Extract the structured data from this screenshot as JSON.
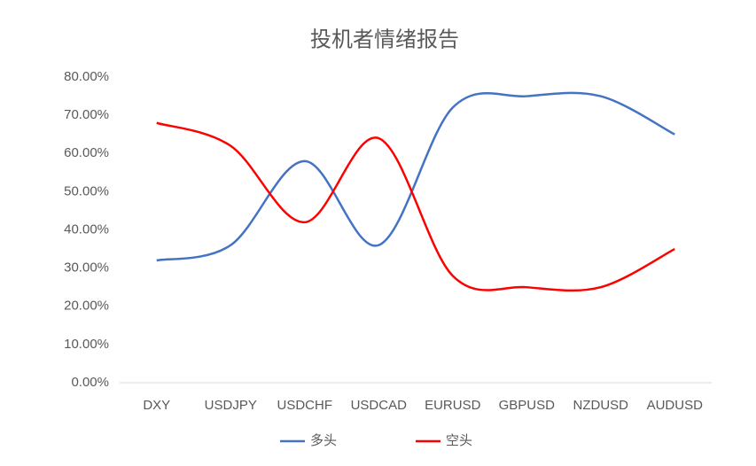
{
  "chart_data": {
    "type": "line",
    "title": "投机者情绪报告",
    "categories": [
      "DXY",
      "USDJPY",
      "USDCHF",
      "USDCAD",
      "EURUSD",
      "GBPUSD",
      "NZDUSD",
      "AUDUSD"
    ],
    "series": [
      {
        "name": "多头",
        "color": "#4472c4",
        "values": [
          32,
          36,
          58,
          36,
          72,
          75,
          75,
          65
        ]
      },
      {
        "name": "空头",
        "color": "#ff0000",
        "values": [
          68,
          62,
          42,
          64,
          28,
          25,
          25,
          35
        ]
      }
    ],
    "ylim": [
      0,
      80
    ],
    "yticks": [
      {
        "value": 0,
        "label": "0.00%"
      },
      {
        "value": 10,
        "label": "10.00%"
      },
      {
        "value": 20,
        "label": "20.00%"
      },
      {
        "value": 30,
        "label": "30.00%"
      },
      {
        "value": 40,
        "label": "40.00%"
      },
      {
        "value": 50,
        "label": "50.00%"
      },
      {
        "value": 60,
        "label": "60.00%"
      },
      {
        "value": 70,
        "label": "70.00%"
      },
      {
        "value": 80,
        "label": "80.00%"
      }
    ],
    "grid": false,
    "legend": "bottom"
  }
}
